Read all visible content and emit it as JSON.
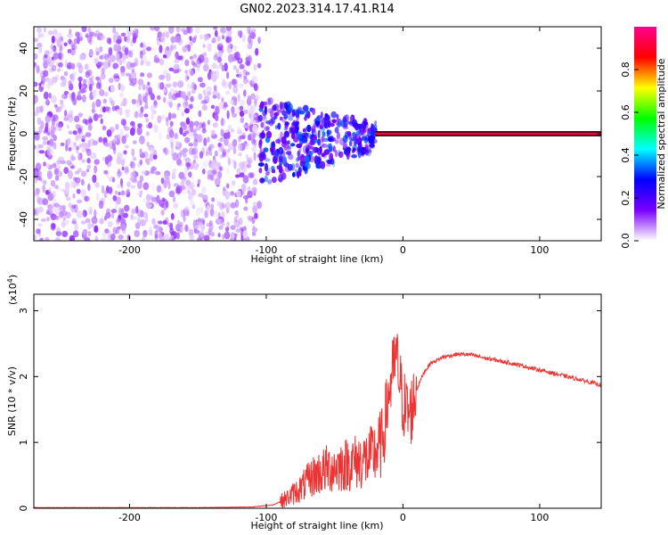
{
  "figure": {
    "title": "GN02.2023.314.17.41.R14"
  },
  "chart_data": [
    {
      "type": "heatmap",
      "xlabel": "Height of straight line (km)",
      "ylabel": "Frequency (Hz)",
      "xlim": [
        -270,
        145
      ],
      "ylim": [
        -50,
        50
      ],
      "xticks": [
        -200,
        -100,
        0,
        100
      ],
      "xtick_labels": [
        "-200",
        "-100",
        "0",
        "100"
      ],
      "yticks": [
        -40,
        -20,
        0,
        20,
        40
      ],
      "ytick_labels": [
        "-40",
        "-20",
        "0",
        "20",
        "40"
      ],
      "colorbar": {
        "label": "Normalized spectral amplitude",
        "range": [
          0,
          1
        ],
        "ticks": [
          0,
          0.2,
          0.4,
          0.6,
          0.8
        ],
        "tick_labels": [
          "0.0",
          "0.2",
          "0.4",
          "0.6",
          "0.8"
        ],
        "colormap": [
          "#ffffff",
          "#7a00ff",
          "#0000ff",
          "#00ffff",
          "#00ff00",
          "#ffff00",
          "#ff0000",
          "#ff0090"
        ]
      },
      "regions": [
        {
          "x": [
            -270,
            -105
          ],
          "freq": [
            -50,
            50
          ],
          "amplitude": [
            0.02,
            0.12
          ],
          "pattern": "scattered noise"
        },
        {
          "x": [
            -105,
            -20
          ],
          "freq": [
            -25,
            17
          ],
          "amplitude": [
            0.1,
            0.35
          ],
          "pattern": "blobs converging toward 0 Hz"
        },
        {
          "x": [
            -20,
            145
          ],
          "freq": [
            -1,
            1
          ],
          "amplitude": [
            0.85,
            1.0
          ],
          "pattern": "narrow line at 0 Hz"
        }
      ],
      "grid": false
    },
    {
      "type": "line",
      "xlabel": "Height of straight line (km)",
      "ylabel": "SNR (10 * v/v)",
      "multiplier": "(x10",
      "multiplier_exp": "4",
      "multiplier_close": ")",
      "xlim": [
        -270,
        145
      ],
      "ylim": [
        0,
        3.25
      ],
      "xticks": [
        -200,
        -100,
        0,
        100
      ],
      "xtick_labels": [
        "-200",
        "-100",
        "0",
        "100"
      ],
      "yticks": [
        0,
        1,
        2,
        3
      ],
      "ytick_labels": [
        "0",
        "1",
        "2",
        "3"
      ],
      "color": "#ee3333",
      "series": [
        {
          "x": [
            -270,
            -200,
            -150,
            -110,
            -95,
            -85,
            -75,
            -65,
            -55,
            -45,
            -35,
            -25,
            -20,
            -15,
            -10,
            -5,
            0,
            5,
            10,
            15,
            20,
            30,
            40,
            50,
            60,
            70,
            80,
            90,
            95,
            100,
            110,
            120,
            130,
            145
          ],
          "y": [
            0.01,
            0.01,
            0.01,
            0.02,
            0.05,
            0.15,
            0.3,
            0.5,
            0.6,
            0.65,
            0.7,
            0.75,
            0.85,
            1.0,
            1.8,
            2.3,
            1.6,
            1.4,
            1.8,
            2.05,
            2.2,
            2.3,
            2.34,
            2.33,
            2.28,
            2.24,
            2.2,
            2.15,
            2.12,
            2.1,
            2.05,
            2.0,
            1.95,
            1.87
          ]
        }
      ],
      "grid": false
    }
  ]
}
